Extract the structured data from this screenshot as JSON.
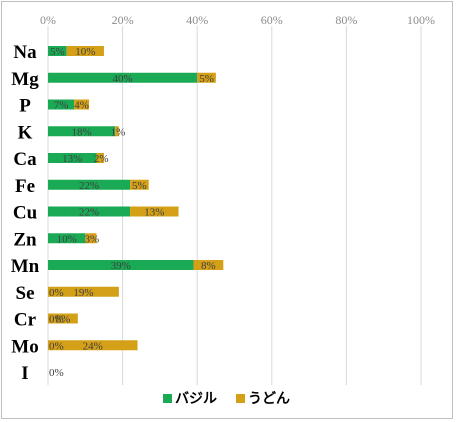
{
  "chart_data": {
    "type": "bar",
    "orientation": "horizontal",
    "stacked": true,
    "categories": [
      "Na",
      "Mg",
      "P",
      "K",
      "Ca",
      "Fe",
      "Cu",
      "Zn",
      "Mn",
      "Se",
      "Cr",
      "Mo",
      "I"
    ],
    "series": [
      {
        "name": "バジル",
        "color": "#1aaa55",
        "values": [
          5,
          40,
          7,
          18,
          13,
          22,
          22,
          10,
          39,
          0,
          0,
          0,
          0
        ],
        "labels": [
          "5%",
          "40%",
          "7%",
          "18%",
          "13%",
          "22%",
          "22%",
          "10%",
          "39%",
          "0%",
          "0%",
          "0%",
          "0%"
        ]
      },
      {
        "name": "うどん",
        "color": "#d4a017",
        "values": [
          10,
          5,
          4,
          1,
          2,
          5,
          13,
          3,
          8,
          19,
          8,
          24,
          null
        ],
        "labels": [
          "10%",
          "5%",
          "4%",
          "1%",
          "2%",
          "5%",
          "13%",
          "3%",
          "8%",
          "19%",
          "8%",
          "24%",
          ""
        ]
      }
    ],
    "xlim": [
      0,
      100
    ],
    "xticks": [
      "0%",
      "20%",
      "40%",
      "60%",
      "80%",
      "100%"
    ],
    "grid": true,
    "legend_position": "bottom"
  }
}
